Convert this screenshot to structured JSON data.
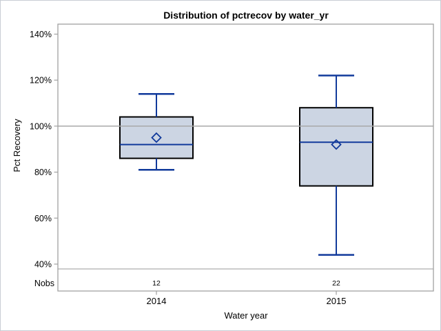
{
  "title": "Distribution of pctrecov by water_yr",
  "y_axis": {
    "label": "Pct Recovery",
    "ticks": [
      {
        "value": 140,
        "label": "140%"
      },
      {
        "value": 120,
        "label": "120%"
      },
      {
        "value": 100,
        "label": "100%"
      },
      {
        "value": 80,
        "label": "80%"
      },
      {
        "value": 60,
        "label": "60%"
      },
      {
        "value": 40,
        "label": "40%"
      }
    ]
  },
  "x_axis": {
    "label": "Water year",
    "categories": [
      "2014",
      "2015"
    ]
  },
  "nobs_row": {
    "label": "Nobs",
    "values": [
      "12",
      "22"
    ]
  },
  "reference_line": {
    "value": 100
  },
  "chart_data": {
    "type": "boxplot",
    "title": "Distribution of pctrecov by water_yr",
    "xlabel": "Water year",
    "ylabel": "Pct Recovery",
    "ylim": [
      40,
      140
    ],
    "grid": false,
    "legend": false,
    "reference_line_y": 100,
    "categories": [
      "2014",
      "2015"
    ],
    "series": [
      {
        "category": "2014",
        "nobs": 12,
        "whisker_low": 81,
        "q1": 86,
        "median": 92,
        "mean": 95,
        "q3": 104,
        "whisker_high": 114
      },
      {
        "category": "2015",
        "nobs": 22,
        "whisker_low": 44,
        "q1": 74,
        "median": 93,
        "mean": 92,
        "q3": 108,
        "whisker_high": 122
      }
    ]
  },
  "colors": {
    "box_fill": "#ccd5e3",
    "box_border": "#000000",
    "whisker_blue": "#10399b",
    "frame_gray": "#a0a0a0",
    "reference_line_gray": "#a8a8a8",
    "divider_gray": "#adadad",
    "text": "#000000"
  }
}
